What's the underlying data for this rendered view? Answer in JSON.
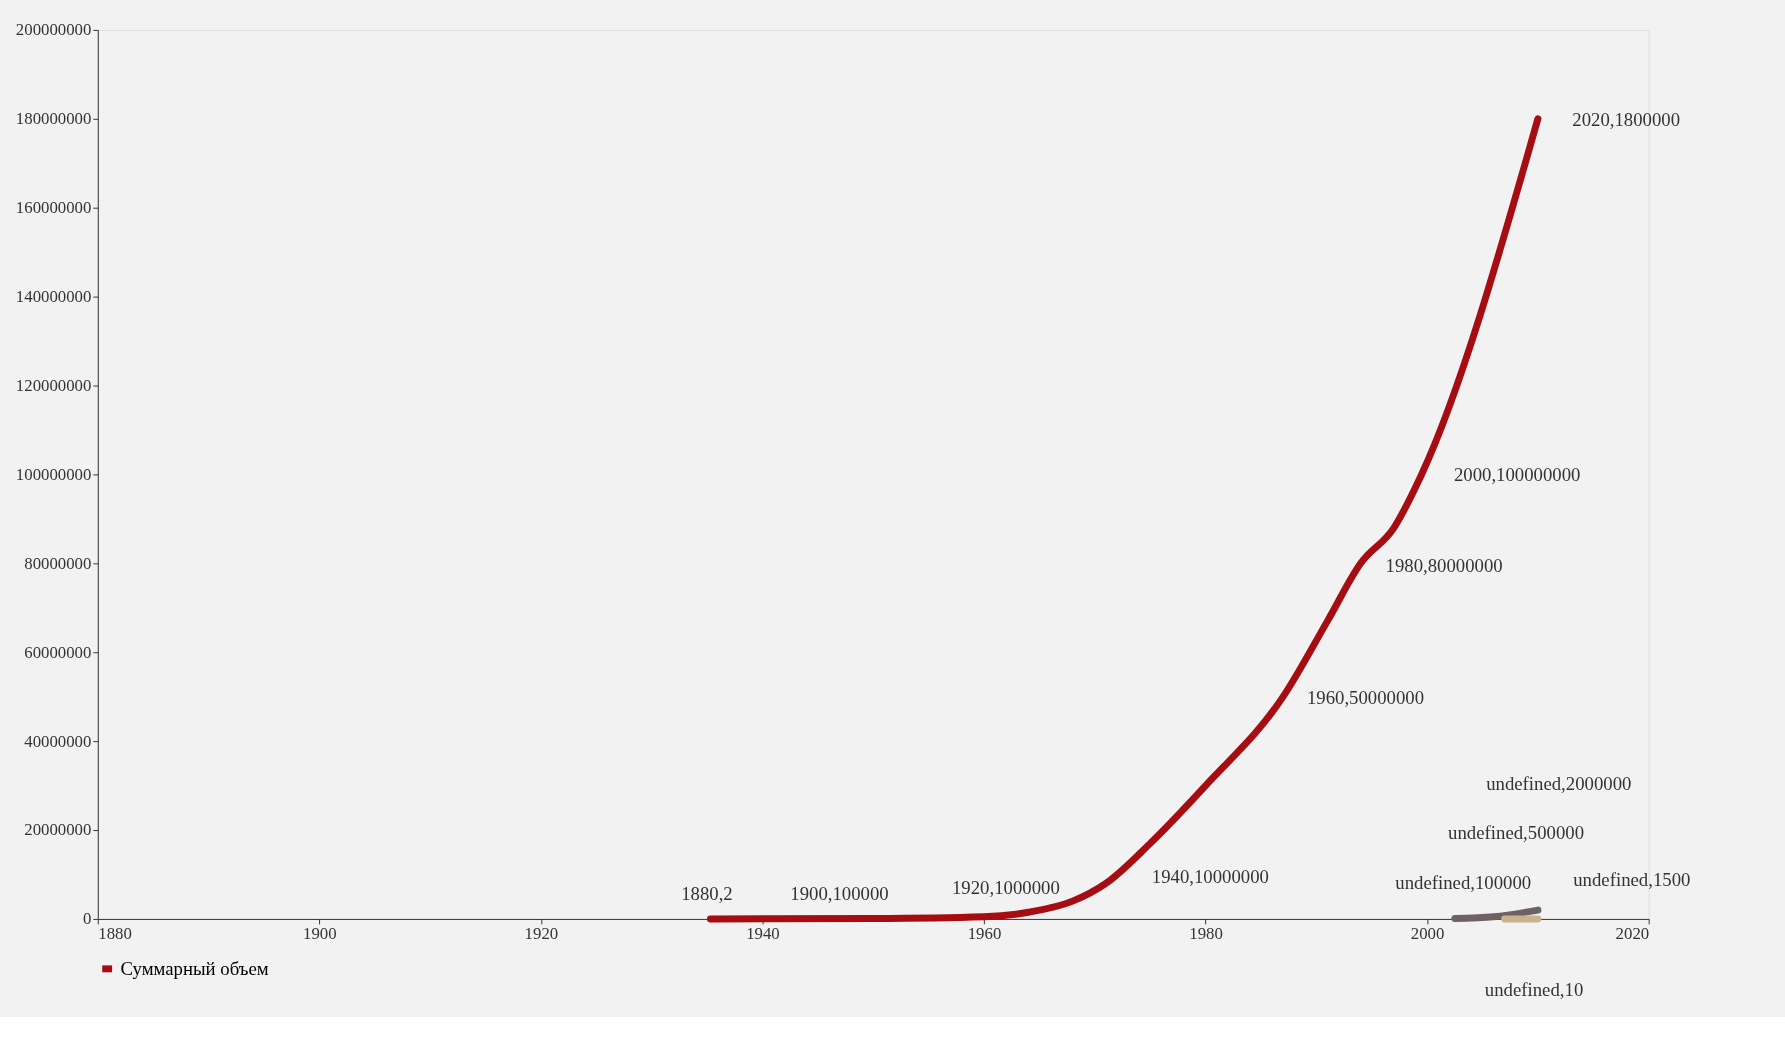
{
  "chart_data": {
    "type": "line",
    "xlim": [
      1880,
      2020
    ],
    "xticks": [
      1880,
      1900,
      1920,
      1940,
      1960,
      1980,
      2000,
      2020
    ],
    "ylim": [
      0,
      200000000
    ],
    "yticks": [
      0,
      20000000,
      40000000,
      60000000,
      80000000,
      100000000,
      120000000,
      140000000,
      160000000,
      180000000,
      200000000
    ],
    "grid": false,
    "legend": "bottom",
    "marker": "none",
    "line_style": "solid",
    "series": [
      {
        "name": "Суммарный объем",
        "color": "#a50d12",
        "x": [
          1935.3,
          1950,
          1960,
          1964,
          1968,
          1971,
          1975,
          1980,
          1987,
          1991,
          1994,
          1997,
          1999.5,
          2010
        ],
        "values": [
          0,
          100000,
          500000,
          1500000,
          4000000,
          8000000,
          17000000,
          30000000,
          50000000,
          67000000,
          80000000,
          88000000,
          100000000,
          180000000
        ]
      },
      {
        "color": "#6e6262",
        "x": [
          2002.5,
          2006,
          2010
        ],
        "values": [
          100000,
          500000,
          2000000
        ]
      },
      {
        "color": "#c8b48c",
        "x": [
          2007,
          2010
        ],
        "values": [
          0,
          0
        ]
      }
    ],
    "annotations": [
      "1880,2",
      "1900,100000",
      "1920,1000000",
      "1940,10000000",
      "1960,50000000",
      "1980,80000000",
      "2000,100000000",
      "2020,1800000",
      "undefined,2000000",
      "undefined,500000",
      "undefined,100000",
      "undefined,1500",
      "undefined,10"
    ]
  }
}
